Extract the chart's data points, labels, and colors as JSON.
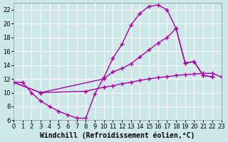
{
  "background_color": "#cce8e8",
  "grid_color": "#ffffff",
  "line_color": "#aa00aa",
  "line_width": 1.0,
  "marker": "+",
  "marker_size": 4,
  "marker_edge_width": 1.0,
  "xlabel": "Windchill (Refroidissement éolien,°C)",
  "xlabel_fontsize": 7,
  "tick_fontsize": 6,
  "xlim": [
    0,
    23
  ],
  "ylim": [
    6,
    23
  ],
  "xticks": [
    0,
    1,
    2,
    3,
    4,
    5,
    6,
    7,
    8,
    9,
    10,
    11,
    12,
    13,
    14,
    15,
    16,
    17,
    18,
    19,
    20,
    21,
    22,
    23
  ],
  "yticks": [
    6,
    8,
    10,
    12,
    14,
    16,
    18,
    20,
    22
  ],
  "series1": [
    [
      0,
      11.5
    ],
    [
      1,
      11.5
    ],
    [
      2,
      10.0
    ],
    [
      3,
      8.8
    ],
    [
      4,
      8.0
    ],
    [
      5,
      7.3
    ],
    [
      6,
      6.8
    ],
    [
      7,
      6.3
    ],
    [
      8,
      6.3
    ],
    [
      9,
      9.8
    ],
    [
      10,
      12.2
    ],
    [
      11,
      15.0
    ],
    [
      12,
      17.0
    ],
    [
      13,
      19.8
    ],
    [
      14,
      21.5
    ],
    [
      15,
      22.5
    ],
    [
      16,
      22.7
    ],
    [
      17,
      22.0
    ],
    [
      18,
      19.3
    ],
    [
      19,
      14.3
    ],
    [
      20,
      14.5
    ],
    [
      21,
      12.5
    ],
    [
      22,
      12.3
    ]
  ],
  "series2": [
    [
      0,
      11.5
    ],
    [
      3,
      10.0
    ],
    [
      10,
      12.0
    ],
    [
      11,
      13.0
    ],
    [
      12,
      13.5
    ],
    [
      13,
      14.2
    ],
    [
      14,
      15.2
    ],
    [
      15,
      16.2
    ],
    [
      16,
      17.2
    ],
    [
      17,
      18.0
    ],
    [
      18,
      19.3
    ],
    [
      19,
      14.3
    ],
    [
      20,
      14.5
    ],
    [
      21,
      12.5
    ],
    [
      22,
      12.3
    ]
  ],
  "series3": [
    [
      0,
      11.5
    ],
    [
      3,
      10.0
    ],
    [
      8,
      10.2
    ],
    [
      10,
      10.8
    ],
    [
      11,
      11.0
    ],
    [
      12,
      11.3
    ],
    [
      13,
      11.5
    ],
    [
      14,
      11.8
    ],
    [
      15,
      12.0
    ],
    [
      16,
      12.2
    ],
    [
      17,
      12.3
    ],
    [
      18,
      12.5
    ],
    [
      19,
      12.6
    ],
    [
      20,
      12.7
    ],
    [
      21,
      12.8
    ],
    [
      22,
      12.8
    ],
    [
      23,
      12.3
    ]
  ]
}
